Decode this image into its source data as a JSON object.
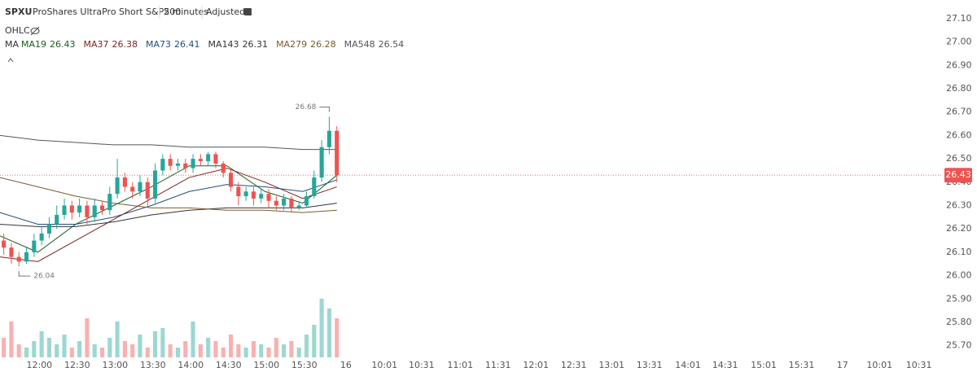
{
  "chart_data": {
    "type": "candlestick",
    "title": "SPXU",
    "subtitle": "ProShares UltraPro Short S&P500",
    "interval": "2 minutes",
    "adjustment": "Adjusted",
    "overlay_label": "OHLC",
    "ma_label": "MA",
    "up_color": "#26a69a",
    "down_color": "#ef5350",
    "open": [
      26.15,
      26.12,
      26.08,
      26.06,
      26.1,
      26.15,
      26.18,
      26.22,
      26.26,
      26.3,
      26.27,
      26.3,
      26.25,
      26.3,
      26.28,
      26.35,
      26.42,
      26.38,
      26.36,
      26.4,
      26.33,
      26.45,
      26.5,
      26.47,
      26.48,
      26.46,
      26.5,
      26.49,
      26.52,
      26.48,
      26.44,
      26.38,
      26.34,
      26.36,
      26.33,
      26.35,
      26.32,
      26.3,
      26.33,
      26.29,
      26.3,
      26.34,
      26.42,
      26.55,
      26.62
    ],
    "high": [
      26.18,
      26.14,
      26.1,
      26.12,
      26.18,
      26.21,
      26.25,
      26.3,
      26.33,
      26.32,
      26.33,
      26.32,
      26.33,
      26.32,
      26.38,
      26.5,
      26.44,
      26.4,
      26.43,
      26.42,
      26.48,
      26.52,
      26.52,
      26.5,
      26.5,
      26.52,
      26.52,
      26.53,
      26.53,
      26.49,
      26.46,
      26.4,
      26.38,
      26.38,
      26.37,
      26.37,
      26.34,
      26.35,
      26.34,
      26.32,
      26.36,
      26.45,
      26.58,
      26.68,
      26.64
    ],
    "low": [
      26.09,
      26.05,
      26.04,
      26.05,
      26.08,
      26.13,
      26.16,
      26.2,
      26.24,
      26.24,
      26.25,
      26.22,
      26.23,
      26.26,
      26.26,
      26.33,
      26.36,
      26.33,
      26.34,
      26.3,
      26.31,
      26.43,
      26.45,
      26.45,
      26.44,
      26.44,
      26.47,
      26.47,
      26.46,
      26.42,
      26.36,
      26.3,
      26.32,
      26.3,
      26.31,
      26.29,
      26.28,
      26.28,
      26.27,
      26.28,
      26.29,
      26.33,
      26.4,
      26.52,
      26.4
    ],
    "close": [
      26.12,
      26.08,
      26.06,
      26.1,
      26.15,
      26.18,
      26.22,
      26.26,
      26.3,
      26.27,
      26.3,
      26.25,
      26.3,
      26.28,
      26.35,
      26.42,
      26.38,
      26.36,
      26.4,
      26.33,
      26.45,
      26.5,
      26.47,
      26.48,
      26.46,
      26.5,
      26.49,
      26.52,
      26.48,
      26.44,
      26.38,
      26.34,
      26.36,
      26.33,
      26.35,
      26.32,
      26.3,
      26.33,
      26.29,
      26.3,
      26.34,
      26.42,
      26.55,
      26.62,
      26.43
    ],
    "volume": [
      30,
      55,
      20,
      15,
      25,
      40,
      30,
      20,
      35,
      15,
      25,
      60,
      20,
      15,
      30,
      55,
      25,
      20,
      35,
      15,
      40,
      45,
      20,
      15,
      25,
      55,
      20,
      30,
      25,
      15,
      35,
      20,
      15,
      25,
      20,
      15,
      30,
      20,
      25,
      15,
      35,
      50,
      90,
      75,
      60
    ],
    "vlim": [
      0,
      100
    ],
    "xlim": [
      0,
      123.7
    ],
    "xticks": [
      {
        "value": 5.2,
        "label": "12:00"
      },
      {
        "value": 10.2,
        "label": "12:30"
      },
      {
        "value": 15.2,
        "label": "13:00"
      },
      {
        "value": 20.2,
        "label": "13:30"
      },
      {
        "value": 25.2,
        "label": "14:00"
      },
      {
        "value": 30.2,
        "label": "14:30"
      },
      {
        "value": 35.2,
        "label": "15:00"
      },
      {
        "value": 40.2,
        "label": "15:30"
      },
      {
        "value": 45.7,
        "label": "16"
      },
      {
        "value": 50.8,
        "label": "10:01"
      },
      {
        "value": 55.7,
        "label": "10:31"
      },
      {
        "value": 60.8,
        "label": "11:01"
      },
      {
        "value": 65.8,
        "label": "11:31"
      },
      {
        "value": 70.8,
        "label": "12:01"
      },
      {
        "value": 75.8,
        "label": "12:31"
      },
      {
        "value": 80.8,
        "label": "13:01"
      },
      {
        "value": 85.8,
        "label": "13:31"
      },
      {
        "value": 90.9,
        "label": "14:01"
      },
      {
        "value": 95.8,
        "label": "14:31"
      },
      {
        "value": 100.9,
        "label": "15:01"
      },
      {
        "value": 105.9,
        "label": "15:31"
      },
      {
        "value": 111.3,
        "label": "17"
      },
      {
        "value": 116.2,
        "label": "10:01"
      },
      {
        "value": 121.4,
        "label": "10:31"
      }
    ],
    "ylim": [
      25.65,
      27.18
    ],
    "yticks": [
      {
        "value": 25.7,
        "label": "25.70"
      },
      {
        "value": 25.8,
        "label": "25.80"
      },
      {
        "value": 25.9,
        "label": "25.90"
      },
      {
        "value": 26.0,
        "label": "26.00"
      },
      {
        "value": 26.1,
        "label": "26.10"
      },
      {
        "value": 26.2,
        "label": "26.20"
      },
      {
        "value": 26.3,
        "label": "26.30"
      },
      {
        "value": 26.4,
        "label": "26.40"
      },
      {
        "value": 26.5,
        "label": "26.50"
      },
      {
        "value": 26.6,
        "label": "26.60"
      },
      {
        "value": 26.7,
        "label": "26.70"
      },
      {
        "value": 26.8,
        "label": "26.80"
      },
      {
        "value": 26.9,
        "label": "26.90"
      },
      {
        "value": 27.0,
        "label": "27.00"
      },
      {
        "value": 27.1,
        "label": "27.10"
      }
    ],
    "series": [
      {
        "name": "MA19",
        "color": "#1b5e20",
        "x": [
          0,
          5,
          10,
          15,
          20,
          25,
          30,
          35,
          40,
          44.5
        ],
        "values": [
          26.17,
          26.1,
          26.22,
          26.3,
          26.38,
          26.47,
          26.47,
          26.36,
          26.31,
          26.43
        ]
      },
      {
        "name": "MA37",
        "color": "#7b1f1f",
        "x": [
          0,
          5,
          10,
          15,
          20,
          25,
          30,
          35,
          40,
          44.5
        ],
        "values": [
          26.08,
          26.06,
          26.15,
          26.24,
          26.33,
          26.42,
          26.46,
          26.4,
          26.33,
          26.38
        ]
      },
      {
        "name": "MA73",
        "color": "#1f4e79",
        "x": [
          0,
          5,
          10,
          15,
          20,
          25,
          30,
          35,
          40,
          44.5
        ],
        "values": [
          26.27,
          26.22,
          26.22,
          26.25,
          26.3,
          26.36,
          26.39,
          26.38,
          26.36,
          26.41
        ]
      },
      {
        "name": "MA143",
        "color": "#333333",
        "x": [
          0,
          5,
          10,
          15,
          20,
          25,
          30,
          35,
          40,
          44.5
        ],
        "values": [
          26.22,
          26.21,
          26.21,
          26.23,
          26.26,
          26.28,
          26.29,
          26.29,
          26.29,
          26.31
        ]
      },
      {
        "name": "MA279",
        "color": "#7a5c2e",
        "x": [
          0,
          5,
          10,
          15,
          20,
          25,
          30,
          35,
          40,
          44.5
        ],
        "values": [
          26.42,
          26.38,
          26.34,
          26.31,
          26.29,
          26.29,
          26.28,
          26.28,
          26.27,
          26.28
        ]
      },
      {
        "name": "MA548",
        "color": "#555555",
        "x": [
          0,
          5,
          10,
          15,
          20,
          25,
          30,
          35,
          40,
          44.5
        ],
        "values": [
          26.6,
          26.58,
          26.57,
          26.56,
          26.56,
          26.55,
          26.55,
          26.55,
          26.54,
          26.54
        ]
      }
    ]
  }
}
